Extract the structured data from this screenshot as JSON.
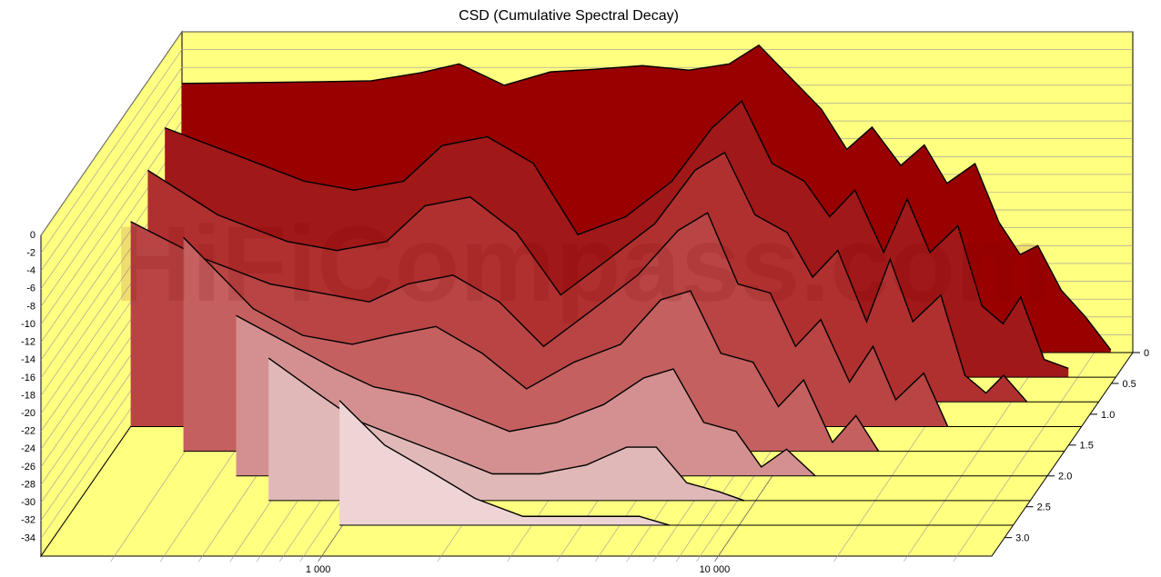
{
  "chart_data": {
    "type": "waterfall",
    "title": "CSD (Cumulative Spectral Decay)",
    "watermark": "HiFiCompass.com",
    "x": [
      200,
      300,
      450,
      600,
      800,
      1000,
      1300,
      1700,
      2200,
      2900,
      3800,
      4800,
      5700,
      6800,
      8200,
      9500,
      11000,
      13000,
      14900,
      17000,
      20000,
      23000,
      26000,
      28800,
      33000,
      38000,
      44000,
      50000
    ],
    "xlim": [
      200,
      50000
    ],
    "xscale": "log",
    "xticks": [
      {
        "value": 1000,
        "label": "1 000"
      },
      {
        "value": 10000,
        "label": "10 000"
      }
    ],
    "x_minor_ticks": [
      300,
      400,
      500,
      600,
      700,
      800,
      900,
      2000,
      3000,
      4000,
      5000,
      6000,
      7000,
      8000,
      9000,
      20000,
      30000,
      40000
    ],
    "ylim": [
      -36,
      0
    ],
    "yticks": [
      0,
      -2,
      -4,
      -6,
      -8,
      -10,
      -12,
      -14,
      -16,
      -18,
      -20,
      -22,
      -24,
      -26,
      -28,
      -30,
      -32,
      -34
    ],
    "zlim": [
      0,
      3.3
    ],
    "zticks": [
      0,
      0.5,
      {
        "value": 1,
        "label": "1.0"
      },
      1.5,
      {
        "value": 2,
        "label": "2.0"
      },
      2.5,
      {
        "value": 3,
        "label": "3.0"
      }
    ],
    "wall_color": "#ffff80",
    "series": [
      {
        "time": 0,
        "color": "#990000",
        "values": [
          -5.8,
          -5.7,
          -5.6,
          -5.5,
          -4.6,
          -3.6,
          -6,
          -4.5,
          -4.2,
          -3.8,
          -4.3,
          -3.6,
          -1.5,
          -5,
          -8.7,
          -13.2,
          -10.7,
          -15,
          -12.7,
          -17,
          -14.8,
          -21.4,
          -25,
          -24,
          -29,
          -32,
          -35.7,
          null
        ]
      },
      {
        "time": 0.4,
        "color": "#a01818",
        "values": [
          -8,
          -11,
          -14,
          -15,
          -14,
          -10,
          -9,
          -12,
          -20,
          -18,
          -14,
          -8,
          -5,
          -12,
          -14,
          -18,
          -15,
          -22,
          -16,
          -22,
          -19,
          -28,
          -30,
          -27,
          -34,
          -35,
          null,
          null
        ]
      },
      {
        "time": 0.8,
        "color": "#b03030",
        "values": [
          -10,
          -15,
          -18,
          -19,
          -18,
          -14,
          -13,
          -17,
          -24,
          -20,
          -16,
          -10,
          -8,
          -15,
          -17,
          -22,
          -19,
          -27,
          -20,
          -27,
          -24,
          -33,
          -35,
          -33,
          -36,
          null,
          null,
          null
        ]
      },
      {
        "time": 1.2,
        "color": "#b84444",
        "values": [
          -13,
          -17,
          -20,
          -21,
          -22,
          -20,
          -19,
          -22,
          -27,
          -23,
          -19,
          -14,
          -12,
          -20,
          -21,
          -27,
          -24,
          -31,
          -27,
          -33,
          -30,
          -36,
          null,
          null,
          null,
          null,
          null,
          null
        ]
      },
      {
        "time": 1.6,
        "color": "#c46060",
        "values": [
          null,
          -12,
          -20,
          -23,
          -24,
          -23,
          -22,
          -25,
          -29,
          -26,
          -24,
          -19,
          -18,
          -25,
          -26,
          -31,
          -28,
          -35,
          -32,
          -36,
          null,
          null,
          null,
          null,
          null,
          null,
          null,
          null
        ]
      },
      {
        "time": 2.0,
        "color": "#d49090",
        "values": [
          null,
          null,
          -18,
          -21,
          -24,
          -26,
          -27,
          -29,
          -31,
          -30,
          -28,
          -25,
          -24,
          -30,
          -31,
          -35,
          -33,
          -36,
          null,
          null,
          null,
          null,
          null,
          null,
          null,
          null,
          null,
          null
        ]
      },
      {
        "time": 2.4,
        "color": "#e0b8b8",
        "values": [
          null,
          null,
          null,
          -20,
          -24,
          -27,
          -29,
          -31,
          -33,
          -33,
          -32,
          -30,
          -30,
          -34,
          -35,
          -36,
          null,
          null,
          null,
          null,
          null,
          null,
          null,
          null,
          null,
          null,
          null,
          null
        ]
      },
      {
        "time": 2.8,
        "color": "#eed4d4",
        "values": [
          null,
          null,
          null,
          null,
          null,
          -22,
          -27,
          -30,
          -33,
          -35,
          -35,
          -35,
          -35,
          -36,
          null,
          null,
          null,
          null,
          null,
          null,
          null,
          null,
          null,
          null,
          null,
          null,
          null,
          null
        ]
      }
    ]
  }
}
